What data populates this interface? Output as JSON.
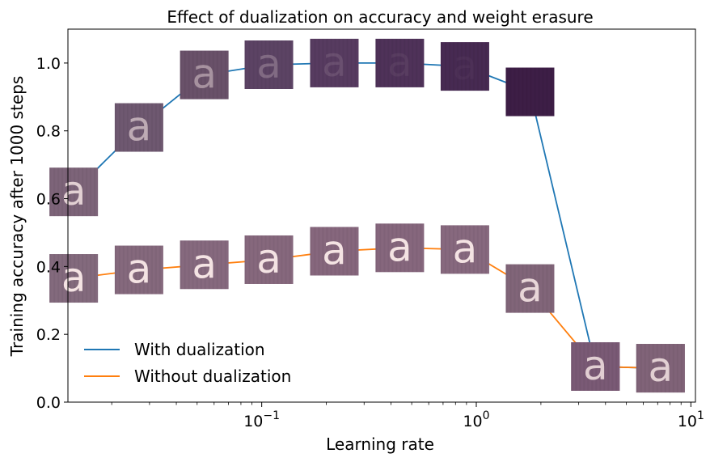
{
  "chart_data": {
    "type": "line",
    "title": "Effect of dualization on accuracy and weight erasure",
    "xlabel": "Learning rate",
    "ylabel": "Training accuracy after 1000 steps",
    "xscale": "log",
    "xlim": [
      0.0125,
      10.5
    ],
    "ylim": [
      0.0,
      1.1
    ],
    "x_ticks": [
      {
        "value": 0.1,
        "base": "10",
        "exp": "−1"
      },
      {
        "value": 1,
        "base": "10",
        "exp": "0"
      },
      {
        "value": 10,
        "base": "10",
        "exp": "1"
      }
    ],
    "y_ticks": [
      {
        "value": 0.0,
        "label": "0.0"
      },
      {
        "value": 0.2,
        "label": "0.2"
      },
      {
        "value": 0.4,
        "label": "0.4"
      },
      {
        "value": 0.6,
        "label": "0.6"
      },
      {
        "value": 0.8,
        "label": "0.8"
      },
      {
        "value": 1.0,
        "label": "1.0"
      }
    ],
    "legend_position": "lower-left",
    "x": [
      0.0133,
      0.0268,
      0.054,
      0.108,
      0.218,
      0.44,
      0.885,
      1.78,
      3.59,
      7.22
    ],
    "series": [
      {
        "name": "With dualization",
        "color": "#1f77b4",
        "values": [
          0.62,
          0.81,
          0.965,
          0.995,
          1.0,
          1.0,
          0.99,
          0.915,
          0.105,
          0.1
        ]
      },
      {
        "name": "Without dualization",
        "color": "#ff7f0e",
        "values": [
          0.365,
          0.39,
          0.405,
          0.42,
          0.445,
          0.455,
          0.45,
          0.335,
          0.105,
          0.1
        ]
      }
    ],
    "thumbnail_letter": "a",
    "thumbnail_colors": {
      "with_dualization": [
        "#7d6479",
        "#6e5870",
        "#695169",
        "#5c4364",
        "#573b60",
        "#4f3259",
        "#472a52",
        "#3d1e46",
        "#7a5a75",
        "#806378"
      ],
      "without_dualization": [
        "#836a7d",
        "#85697d",
        "#86697e",
        "#86687d",
        "#86677d",
        "#86677d",
        "#87697e",
        "#816579",
        "#7a5a75",
        "#806378"
      ],
      "letter_visibility_with": [
        0.85,
        0.6,
        0.45,
        0.25,
        0.12,
        0.06,
        0.03,
        0.0,
        0.85,
        0.85
      ],
      "letter_visibility_without": [
        1,
        1,
        1,
        1,
        1,
        1,
        1,
        0.9,
        0.85,
        0.85
      ]
    }
  }
}
